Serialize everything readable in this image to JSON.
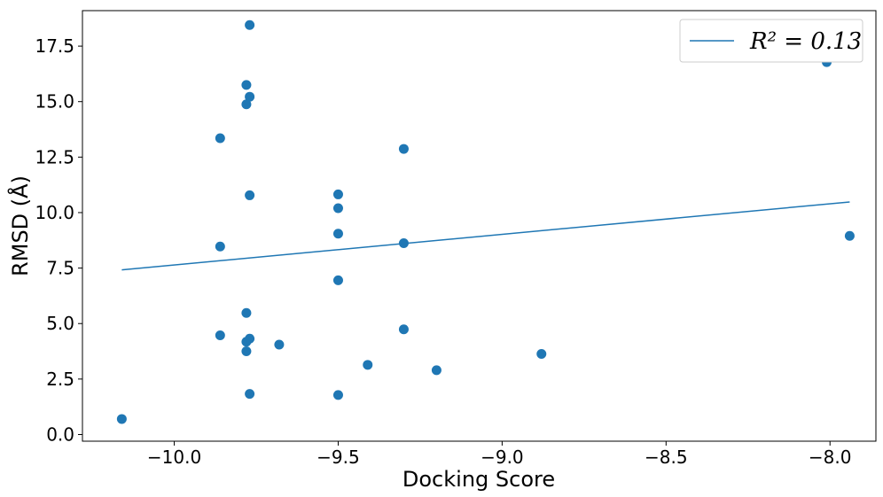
{
  "chart_data": {
    "type": "scatter",
    "title": "",
    "xlabel": "Docking Score",
    "ylabel": "RMSD (Å)",
    "xlim": [
      -10.28,
      -7.86
    ],
    "ylim": [
      -0.3,
      19.1
    ],
    "xticks": [
      -10.0,
      -9.5,
      -9.0,
      -8.5,
      -8.0
    ],
    "xtick_labels": [
      "−10.0",
      "−9.5",
      "−9.0",
      "−8.5",
      "−8.0"
    ],
    "yticks": [
      0.0,
      2.5,
      5.0,
      7.5,
      10.0,
      12.5,
      15.0,
      17.5
    ],
    "ytick_labels": [
      "0.0",
      "2.5",
      "5.0",
      "7.5",
      "10.0",
      "12.5",
      "15.0",
      "17.5"
    ],
    "grid": false,
    "legend": "top-right",
    "color": "#1f77b4",
    "series": [
      {
        "kind": "points",
        "points": [
          [
            -10.16,
            0.7
          ],
          [
            -9.86,
            13.35
          ],
          [
            -9.86,
            8.47
          ],
          [
            -9.86,
            4.47
          ],
          [
            -9.78,
            15.75
          ],
          [
            -9.78,
            14.88
          ],
          [
            -9.78,
            5.48
          ],
          [
            -9.78,
            4.18
          ],
          [
            -9.78,
            3.75
          ],
          [
            -9.77,
            18.45
          ],
          [
            -9.77,
            15.22
          ],
          [
            -9.77,
            10.78
          ],
          [
            -9.77,
            4.32
          ],
          [
            -9.77,
            1.83
          ],
          [
            -9.68,
            4.05
          ],
          [
            -9.5,
            10.82
          ],
          [
            -9.5,
            10.2
          ],
          [
            -9.5,
            9.05
          ],
          [
            -9.5,
            6.95
          ],
          [
            -9.5,
            1.78
          ],
          [
            -9.41,
            3.14
          ],
          [
            -9.3,
            12.87
          ],
          [
            -9.3,
            8.62
          ],
          [
            -9.3,
            4.74
          ],
          [
            -9.2,
            2.9
          ],
          [
            -8.88,
            3.63
          ],
          [
            -8.01,
            16.78
          ],
          [
            -7.94,
            8.95
          ]
        ]
      },
      {
        "kind": "fit-line",
        "name": "R² = 0.13",
        "x": [
          -10.16,
          -7.94
        ],
        "y": [
          7.42,
          10.48
        ]
      }
    ]
  }
}
